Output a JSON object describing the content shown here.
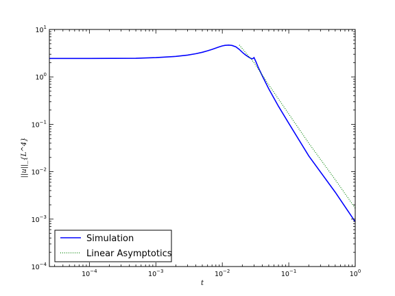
{
  "chart_data": {
    "type": "line",
    "title": "",
    "xlabel": "t",
    "ylabel": "||u||_{L^4}",
    "xscale": "log",
    "yscale": "log",
    "xlim": [
      2.5e-05,
      1
    ],
    "ylim": [
      0.0001,
      10
    ],
    "grid": false,
    "legend_position": "lower-left",
    "x_ticks": [
      {
        "value": 0.0001,
        "base": "10",
        "exp": "−4"
      },
      {
        "value": 0.001,
        "base": "10",
        "exp": "−3"
      },
      {
        "value": 0.01,
        "base": "10",
        "exp": "−2"
      },
      {
        "value": 0.1,
        "base": "10",
        "exp": "−1"
      },
      {
        "value": 1,
        "base": "10",
        "exp": "0"
      }
    ],
    "y_ticks": [
      {
        "value": 0.0001,
        "base": "10",
        "exp": "−4"
      },
      {
        "value": 0.001,
        "base": "10",
        "exp": "−3"
      },
      {
        "value": 0.01,
        "base": "10",
        "exp": "−2"
      },
      {
        "value": 0.1,
        "base": "10",
        "exp": "−1"
      },
      {
        "value": 1,
        "base": "10",
        "exp": "0"
      },
      {
        "value": 10,
        "base": "10",
        "exp": "1"
      }
    ],
    "series": [
      {
        "name": "Simulation",
        "color": "#0000ff",
        "style": "solid",
        "x": [
          2.5e-05,
          0.0001,
          0.0005,
          0.001,
          0.002,
          0.003,
          0.004,
          0.005,
          0.006,
          0.007,
          0.008,
          0.009,
          0.01,
          0.011,
          0.0125,
          0.014,
          0.016,
          0.018,
          0.02,
          0.022,
          0.025,
          0.027,
          0.0285,
          0.03,
          0.032,
          0.035,
          0.04,
          0.05,
          0.07,
          0.1,
          0.2,
          0.5,
          1.0
        ],
        "y": [
          2.45,
          2.45,
          2.47,
          2.55,
          2.7,
          2.88,
          3.08,
          3.3,
          3.55,
          3.8,
          4.05,
          4.3,
          4.5,
          4.62,
          4.68,
          4.6,
          4.3,
          3.8,
          3.3,
          2.95,
          2.6,
          2.45,
          2.4,
          2.55,
          2.1,
          1.55,
          1.05,
          0.56,
          0.24,
          0.105,
          0.0215,
          0.0037,
          0.00088
        ]
      },
      {
        "name": "Linear Asymptotics",
        "color": "#008000",
        "style": "dotted",
        "x": [
          0.018,
          0.03,
          0.05,
          0.1,
          0.2,
          0.5,
          1.0
        ],
        "y": [
          4.7,
          2.0,
          0.68,
          0.165,
          0.04,
          0.0068,
          0.0017
        ]
      }
    ]
  }
}
